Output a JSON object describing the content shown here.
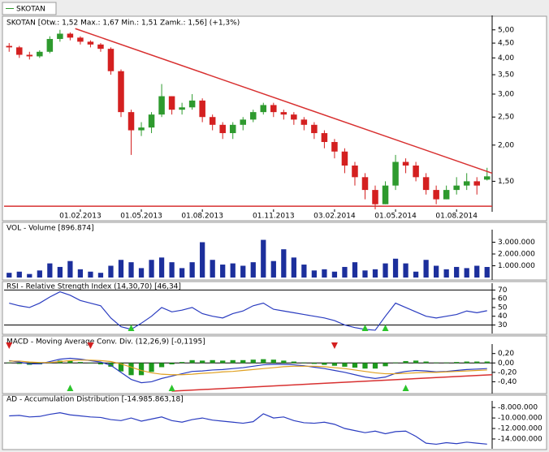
{
  "legend": "SKOTAN",
  "chart_data": [
    {
      "type": "candlestick",
      "title": "SKOTAN [Otw.: 1,52  Max.: 1,67  Min.: 1,51  Zamk.: 1,56] (+1,3%)",
      "categories": [
        null,
        null,
        null,
        null,
        null,
        null,
        null,
        "01.02.2013",
        null,
        null,
        null,
        null,
        null,
        "01.05.2013",
        null,
        null,
        null,
        null,
        null,
        "01.08.2013",
        null,
        null,
        null,
        null,
        null,
        null,
        "01.11.2013",
        null,
        null,
        null,
        null,
        null,
        "03.02.2014",
        null,
        null,
        null,
        null,
        null,
        "01.05.2014",
        null,
        null,
        null,
        null,
        null,
        "01.08.2014",
        null,
        null,
        null
      ],
      "open": [
        4.4,
        4.35,
        4.1,
        4.05,
        4.2,
        4.65,
        4.85,
        4.7,
        4.55,
        4.45,
        4.3,
        3.6,
        2.6,
        2.25,
        2.3,
        2.55,
        2.95,
        2.65,
        2.7,
        2.85,
        2.5,
        2.35,
        2.2,
        2.35,
        2.45,
        2.6,
        2.75,
        2.6,
        2.55,
        2.45,
        2.35,
        2.2,
        2.05,
        1.9,
        1.7,
        1.55,
        1.4,
        1.25,
        1.45,
        1.75,
        1.7,
        1.55,
        1.4,
        1.3,
        1.4,
        1.45,
        1.5,
        1.52
      ],
      "high": [
        4.5,
        4.4,
        4.2,
        4.25,
        4.75,
        5.0,
        4.9,
        4.75,
        4.6,
        4.5,
        4.35,
        3.65,
        2.65,
        2.4,
        2.6,
        3.25,
        2.95,
        2.8,
        3.0,
        2.9,
        2.55,
        2.4,
        2.4,
        2.5,
        2.65,
        2.8,
        2.8,
        2.65,
        2.6,
        2.5,
        2.4,
        2.25,
        2.1,
        1.95,
        1.75,
        1.6,
        1.45,
        1.5,
        1.85,
        1.8,
        1.75,
        1.6,
        1.45,
        1.45,
        1.55,
        1.6,
        1.55,
        1.67
      ],
      "low": [
        4.2,
        4.0,
        3.95,
        4.0,
        4.15,
        4.55,
        4.6,
        4.45,
        4.35,
        4.2,
        3.5,
        2.5,
        1.85,
        2.15,
        2.2,
        2.5,
        2.55,
        2.55,
        2.65,
        2.4,
        2.25,
        2.1,
        2.1,
        2.25,
        2.4,
        2.55,
        2.5,
        2.45,
        2.35,
        2.25,
        2.1,
        1.95,
        1.8,
        1.6,
        1.45,
        1.3,
        1.2,
        1.25,
        1.4,
        1.6,
        1.5,
        1.35,
        1.25,
        1.3,
        1.35,
        1.4,
        1.35,
        1.51
      ],
      "close": [
        4.35,
        4.1,
        4.05,
        4.2,
        4.65,
        4.85,
        4.7,
        4.55,
        4.45,
        4.3,
        3.6,
        2.6,
        2.25,
        2.3,
        2.55,
        2.95,
        2.65,
        2.7,
        2.85,
        2.5,
        2.35,
        2.2,
        2.35,
        2.45,
        2.6,
        2.75,
        2.6,
        2.55,
        2.45,
        2.35,
        2.2,
        2.05,
        1.9,
        1.7,
        1.55,
        1.4,
        1.25,
        1.45,
        1.75,
        1.7,
        1.55,
        1.4,
        1.3,
        1.4,
        1.45,
        1.5,
        1.45,
        1.56
      ],
      "up_color": "#2e9a2e",
      "down_color": "#d42020",
      "log": true,
      "ylim": [
        1.2,
        5.5
      ],
      "yticks": [
        {
          "value": 1.5,
          "label": "1,50"
        },
        {
          "value": 2,
          "label": "2,00"
        },
        {
          "value": 2.5,
          "label": "2,50"
        },
        {
          "value": 3,
          "label": "3,00"
        },
        {
          "value": 3.5,
          "label": "3,50"
        },
        {
          "value": 4,
          "label": "4,00"
        },
        {
          "value": 4.5,
          "label": "4,50"
        },
        {
          "value": 5,
          "label": "5,00"
        }
      ],
      "trendlines": [
        {
          "color": "#d83030",
          "points": [
            [
              6.5,
              5.05
            ],
            [
              47.5,
              1.6
            ]
          ]
        },
        {
          "color": "#d83030",
          "points": [
            [
              -0.5,
              1.23
            ],
            [
              47.5,
              1.23
            ]
          ]
        }
      ]
    },
    {
      "type": "bar",
      "title": "VOL - Volume [896.874]",
      "series": [
        {
          "color": "#1c2f9c",
          "values": [
            400000,
            500000,
            300000,
            600000,
            1200000,
            900000,
            1400000,
            700000,
            500000,
            400000,
            1000000,
            1500000,
            1300000,
            800000,
            1500000,
            1700000,
            1300000,
            800000,
            1300000,
            3000000,
            1500000,
            1100000,
            1200000,
            1000000,
            1300000,
            3200000,
            1400000,
            2400000,
            1700000,
            1100000,
            600000,
            700000,
            500000,
            900000,
            1300000,
            600000,
            700000,
            1200000,
            1600000,
            1200000,
            500000,
            1500000,
            1000000,
            700000,
            900000,
            800000,
            1000000,
            896874
          ]
        }
      ],
      "ylim": [
        0,
        3860000
      ],
      "yticks": [
        {
          "value": 1000000,
          "label": "1.000.000"
        },
        {
          "value": 2000000,
          "label": "2.000.000"
        },
        {
          "value": 3000000,
          "label": "3.000.000"
        }
      ]
    },
    {
      "type": "line",
      "title": "RSI - Relative Strength Index (14,30,70) [46,34]",
      "series": [
        {
          "color": "#2a3cc0",
          "values": [
            55,
            52,
            50,
            55,
            62,
            68,
            64,
            58,
            55,
            52,
            38,
            28,
            25,
            32,
            40,
            50,
            45,
            47,
            50,
            43,
            40,
            38,
            43,
            46,
            52,
            55,
            48,
            46,
            44,
            42,
            40,
            38,
            35,
            30,
            27,
            25,
            24,
            40,
            55,
            50,
            45,
            40,
            38,
            40,
            42,
            46,
            44,
            46.34
          ]
        }
      ],
      "hlines": [
        70,
        30
      ],
      "buy_signals": [
        12,
        35,
        37
      ],
      "ylim": [
        23,
        75
      ],
      "yticks": [
        30,
        40,
        50,
        60,
        70
      ]
    },
    {
      "type": "line",
      "title": "MACD - Moving Average Conv. Div. (12,26,9) [-0,1195]",
      "series": [
        {
          "style": "bar",
          "color": "#1e9a1e",
          "values": [
            0.01,
            -0.02,
            -0.04,
            -0.03,
            0.02,
            0.05,
            0.05,
            0.02,
            -0.01,
            -0.03,
            -0.08,
            -0.18,
            -0.26,
            -0.26,
            -0.19,
            -0.09,
            -0.03,
            0.02,
            0.06,
            0.05,
            0.06,
            0.05,
            0.06,
            0.06,
            0.07,
            0.08,
            0.07,
            0.05,
            0.03,
            0.01,
            -0.02,
            -0.04,
            -0.06,
            -0.08,
            -0.1,
            -0.12,
            -0.12,
            -0.07,
            0.01,
            0.04,
            0.05,
            0.03,
            0.01,
            0.01,
            0.02,
            0.03,
            0.03,
            0.03
          ]
        },
        {
          "color": "#2a3cc0",
          "values": [
            0.05,
            0.02,
            -0.02,
            -0.02,
            0.03,
            0.08,
            0.1,
            0.08,
            0.05,
            0.02,
            -0.05,
            -0.2,
            -0.35,
            -0.42,
            -0.4,
            -0.33,
            -0.28,
            -0.23,
            -0.18,
            -0.17,
            -0.15,
            -0.14,
            -0.12,
            -0.1,
            -0.07,
            -0.04,
            -0.03,
            -0.03,
            -0.04,
            -0.06,
            -0.09,
            -0.12,
            -0.16,
            -0.2,
            -0.25,
            -0.3,
            -0.33,
            -0.3,
            -0.22,
            -0.18,
            -0.16,
            -0.17,
            -0.19,
            -0.18,
            -0.16,
            -0.14,
            -0.13,
            -0.1195
          ]
        },
        {
          "color": "#e0a020",
          "values": [
            0.04,
            0.04,
            0.02,
            0.01,
            0.01,
            0.03,
            0.05,
            0.06,
            0.06,
            0.05,
            0.03,
            -0.02,
            -0.09,
            -0.16,
            -0.21,
            -0.24,
            -0.25,
            -0.25,
            -0.24,
            -0.22,
            -0.21,
            -0.19,
            -0.18,
            -0.16,
            -0.14,
            -0.12,
            -0.1,
            -0.08,
            -0.07,
            -0.07,
            -0.07,
            -0.08,
            -0.1,
            -0.12,
            -0.15,
            -0.18,
            -0.21,
            -0.23,
            -0.23,
            -0.22,
            -0.21,
            -0.2,
            -0.2,
            -0.19,
            -0.18,
            -0.17,
            -0.16,
            -0.15
          ]
        }
      ],
      "hlines": [
        0
      ],
      "buy_signals": [
        6,
        16,
        39
      ],
      "sell_signals": [
        0,
        8,
        32
      ],
      "trendlines": [
        {
          "color": "#d83030",
          "points": [
            [
              16,
              -0.6
            ],
            [
              47.5,
              -0.25
            ]
          ]
        }
      ],
      "ylim": [
        -0.6,
        0.35
      ],
      "yticks": [
        {
          "value": -0.4,
          "label": "-0,40"
        },
        {
          "value": -0.2,
          "label": "-0,20"
        },
        {
          "value": 0,
          "label": "0,00"
        },
        {
          "value": 0.2,
          "label": "0,20"
        }
      ]
    },
    {
      "type": "line",
      "title": "AD - Accumulation Distribution [-14.985.863,18]",
      "series": [
        {
          "color": "#2a3cc0",
          "values": [
            -9600000,
            -9500000,
            -9800000,
            -9700000,
            -9300000,
            -9000000,
            -9400000,
            -9600000,
            -9800000,
            -9900000,
            -10300000,
            -10500000,
            -10000000,
            -10600000,
            -10200000,
            -9800000,
            -10500000,
            -10800000,
            -10300000,
            -10000000,
            -10400000,
            -10600000,
            -10800000,
            -11000000,
            -10700000,
            -9200000,
            -10000000,
            -9800000,
            -10500000,
            -10900000,
            -11000000,
            -10800000,
            -11200000,
            -12000000,
            -12400000,
            -12800000,
            -12500000,
            -13000000,
            -12600000,
            -12500000,
            -13500000,
            -14800000,
            -15000000,
            -14700000,
            -14900000,
            -14600000,
            -14800000,
            -14985863.18
          ]
        }
      ],
      "ylim": [
        -15400000,
        -7200000
      ],
      "yticks": [
        {
          "value": -14000000,
          "label": "-14.000.000"
        },
        {
          "value": -12000000,
          "label": "-12.000.000"
        },
        {
          "value": -10000000,
          "label": "-10.000.000"
        },
        {
          "value": -8000000,
          "label": "-8.000.000"
        }
      ]
    }
  ]
}
